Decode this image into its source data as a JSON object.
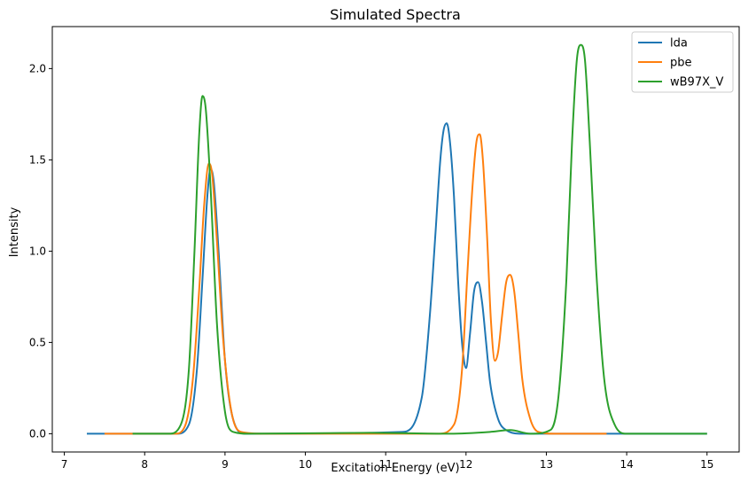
{
  "chart_data": {
    "type": "line",
    "title": "Simulated Spectra",
    "xlabel": "Excitation Energy (eV)",
    "ylabel": "Intensity",
    "xlim": [
      6.85,
      15.4
    ],
    "ylim": [
      -0.1,
      2.23
    ],
    "xticks": [
      7,
      8,
      9,
      10,
      11,
      12,
      13,
      14,
      15
    ],
    "xtick_labels": [
      "7",
      "8",
      "9",
      "10",
      "11",
      "12",
      "13",
      "14",
      "15"
    ],
    "yticks": [
      0.0,
      0.5,
      1.0,
      1.5,
      2.0
    ],
    "ytick_labels": [
      "0.0",
      "0.5",
      "1.0",
      "1.5",
      "2.0"
    ],
    "grid": false,
    "legend_position": "top-right",
    "series": [
      {
        "name": "lda",
        "color": "#1f77b4",
        "x": [
          7.28,
          8.4,
          8.55,
          8.65,
          8.72,
          8.78,
          8.82,
          8.86,
          8.92,
          9.0,
          9.1,
          9.25,
          9.5,
          11.2,
          11.45,
          11.55,
          11.62,
          11.68,
          11.72,
          11.76,
          11.8,
          11.85,
          11.9,
          11.95,
          12.0,
          12.05,
          12.1,
          12.15,
          12.2,
          12.25,
          12.3,
          12.4,
          12.5,
          12.7,
          13.0,
          15.0
        ],
        "y": [
          0.0,
          0.0,
          0.05,
          0.35,
          0.85,
          1.3,
          1.45,
          1.38,
          1.0,
          0.4,
          0.08,
          0.0,
          0.0,
          0.01,
          0.2,
          0.65,
          1.1,
          1.5,
          1.66,
          1.7,
          1.6,
          1.3,
          0.85,
          0.5,
          0.36,
          0.55,
          0.78,
          0.83,
          0.72,
          0.5,
          0.28,
          0.08,
          0.02,
          0.0,
          0.0,
          0.0
        ]
      },
      {
        "name": "pbe",
        "color": "#ff7f0e",
        "x": [
          7.5,
          8.38,
          8.5,
          8.6,
          8.68,
          8.74,
          8.8,
          8.84,
          8.9,
          8.98,
          9.08,
          9.2,
          9.5,
          11.65,
          11.85,
          11.95,
          12.02,
          12.08,
          12.13,
          12.17,
          12.21,
          12.26,
          12.31,
          12.36,
          12.4,
          12.45,
          12.5,
          12.55,
          12.6,
          12.65,
          12.7,
          12.8,
          12.9,
          13.1,
          13.75
        ],
        "y": [
          0.0,
          0.0,
          0.04,
          0.3,
          0.8,
          1.25,
          1.48,
          1.42,
          1.05,
          0.5,
          0.12,
          0.01,
          0.0,
          0.0,
          0.05,
          0.35,
          0.9,
          1.35,
          1.6,
          1.64,
          1.5,
          1.1,
          0.62,
          0.4,
          0.45,
          0.65,
          0.83,
          0.87,
          0.78,
          0.55,
          0.3,
          0.08,
          0.01,
          0.0,
          0.0
        ]
      },
      {
        "name": "wB97X_V",
        "color": "#2ca02c",
        "x": [
          7.85,
          8.3,
          8.45,
          8.55,
          8.62,
          8.68,
          8.72,
          8.76,
          8.82,
          8.9,
          9.0,
          9.1,
          9.3,
          10.8,
          11.8,
          12.3,
          12.55,
          12.8,
          13.05,
          13.15,
          13.25,
          13.32,
          13.38,
          13.43,
          13.48,
          13.54,
          13.62,
          13.72,
          13.85,
          14.0,
          15.0
        ],
        "y": [
          0.0,
          0.0,
          0.05,
          0.35,
          1.0,
          1.65,
          1.85,
          1.78,
          1.35,
          0.6,
          0.12,
          0.01,
          0.0,
          0.005,
          0.0,
          0.01,
          0.02,
          0.0,
          0.02,
          0.2,
          0.85,
          1.6,
          2.05,
          2.13,
          2.05,
          1.6,
          0.9,
          0.3,
          0.05,
          0.0,
          0.0
        ]
      }
    ]
  }
}
